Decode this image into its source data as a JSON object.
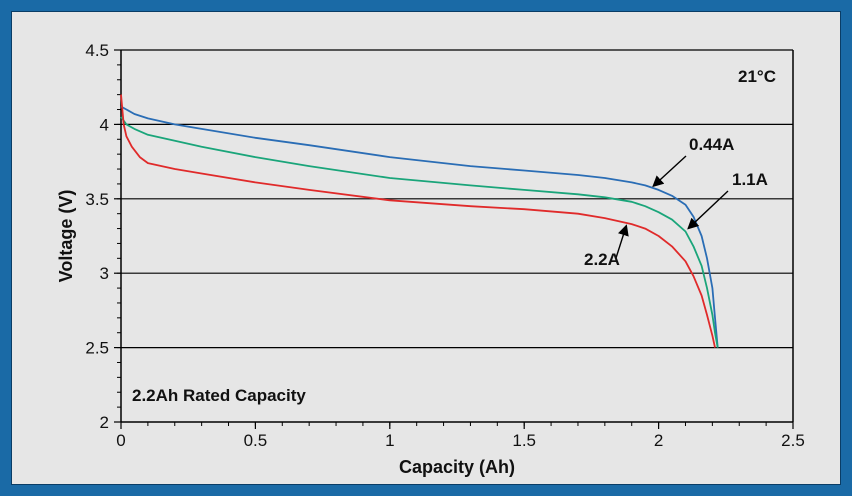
{
  "chart_data": {
    "type": "line",
    "xlabel": "Capacity (Ah)",
    "ylabel": "Voltage (V)",
    "xlim": [
      0,
      2.5
    ],
    "ylim": [
      2,
      4.5
    ],
    "xticks": [
      "0",
      "0.5",
      "1",
      "1.5",
      "2",
      "2.5"
    ],
    "yticks": [
      "2",
      "2.5",
      "3",
      "3.5",
      "4",
      "4.5"
    ],
    "grid": "horizontal",
    "annotations": {
      "temperature": "21°C",
      "rated": "2.2Ah Rated Capacity"
    },
    "series": [
      {
        "name": "0.44A",
        "color": "#2a6db5",
        "x": [
          0,
          0.02,
          0.05,
          0.1,
          0.2,
          0.3,
          0.5,
          0.7,
          1.0,
          1.3,
          1.5,
          1.7,
          1.8,
          1.9,
          1.95,
          2.0,
          2.05,
          2.1,
          2.13,
          2.16,
          2.18,
          2.2,
          2.21,
          2.22
        ],
        "y": [
          4.12,
          4.1,
          4.07,
          4.04,
          4.0,
          3.97,
          3.91,
          3.86,
          3.78,
          3.72,
          3.69,
          3.66,
          3.64,
          3.61,
          3.59,
          3.56,
          3.52,
          3.46,
          3.38,
          3.25,
          3.1,
          2.9,
          2.7,
          2.5
        ]
      },
      {
        "name": "1.1A",
        "color": "#1aa57a",
        "x": [
          0,
          0.02,
          0.05,
          0.1,
          0.2,
          0.3,
          0.5,
          0.7,
          1.0,
          1.3,
          1.5,
          1.7,
          1.8,
          1.9,
          1.95,
          2.0,
          2.05,
          2.1,
          2.13,
          2.16,
          2.18,
          2.2,
          2.21,
          2.22
        ],
        "y": [
          4.05,
          4.0,
          3.97,
          3.93,
          3.89,
          3.85,
          3.78,
          3.72,
          3.64,
          3.59,
          3.56,
          3.53,
          3.51,
          3.48,
          3.45,
          3.41,
          3.36,
          3.28,
          3.18,
          3.05,
          2.9,
          2.72,
          2.6,
          2.5
        ]
      },
      {
        "name": "2.2A",
        "color": "#e02a2a",
        "x": [
          0,
          0.01,
          0.02,
          0.04,
          0.07,
          0.1,
          0.2,
          0.3,
          0.5,
          0.7,
          1.0,
          1.3,
          1.5,
          1.7,
          1.8,
          1.9,
          1.95,
          2.0,
          2.05,
          2.1,
          2.13,
          2.16,
          2.18,
          2.2,
          2.21
        ],
        "y": [
          4.2,
          4.0,
          3.92,
          3.85,
          3.78,
          3.74,
          3.7,
          3.67,
          3.61,
          3.56,
          3.49,
          3.45,
          3.43,
          3.4,
          3.37,
          3.33,
          3.3,
          3.25,
          3.18,
          3.08,
          2.98,
          2.85,
          2.72,
          2.58,
          2.5
        ]
      }
    ],
    "series_labels": [
      {
        "text": "0.44A"
      },
      {
        "text": "1.1A"
      },
      {
        "text": "2.2A"
      }
    ]
  }
}
